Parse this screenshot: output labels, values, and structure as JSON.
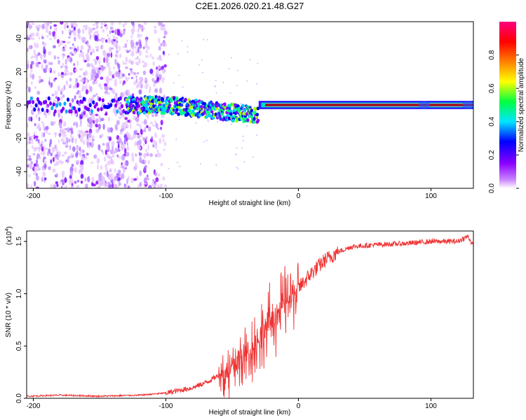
{
  "title": "C2E1.2026.020.21.48.G27",
  "chart_data": [
    {
      "type": "heatmap",
      "xlabel": "Height of straight line (km)",
      "ylabel": "Frequency (Hz)",
      "xlim": [
        -205,
        132
      ],
      "ylim": [
        -50,
        50
      ],
      "xticks": [
        -200,
        -100,
        0,
        100
      ],
      "xtick_labels": [
        "-200",
        "-100",
        "0",
        "100"
      ],
      "yticks": [
        -40,
        -20,
        0,
        20,
        40
      ],
      "ytick_labels": [
        "-40",
        "-20",
        "0",
        "20",
        "40"
      ],
      "colorbar": {
        "label": "Normalized spectral amplitude",
        "range": [
          0.0,
          1.0
        ],
        "ticks": [
          0.0,
          0.2,
          0.4,
          0.6,
          0.8
        ],
        "tick_labels": [
          "0.0",
          "0.2",
          "0.4",
          "0.6",
          "0.8"
        ],
        "colormap": [
          "#ffffff",
          "#a000ff",
          "#0000ff",
          "#00e5ff",
          "#00ff40",
          "#ffff00",
          "#ff8000",
          "#ff0000",
          "#ff0080"
        ]
      },
      "regions": [
        {
          "name": "noise",
          "x_range": [
            -205,
            -100
          ],
          "spread_hz": 50,
          "amplitude": 0.15
        },
        {
          "name": "fading",
          "x_range": [
            -100,
            -30
          ],
          "center_hz": [
            0,
            -6
          ],
          "amplitude": 0.4
        },
        {
          "name": "stable",
          "x_range": [
            -30,
            132
          ],
          "center_hz": [
            0,
            0
          ],
          "amplitude": 1.0
        }
      ]
    },
    {
      "type": "line",
      "xlabel": "Height of straight line (km)",
      "ylabel": "SNR (10 * v/v)",
      "scale_label": "(x10",
      "scale_exp": "4",
      "xlim": [
        -205,
        132
      ],
      "ylim": [
        0,
        1.6
      ],
      "xticks": [
        -200,
        -100,
        0,
        100
      ],
      "xtick_labels": [
        "-200",
        "-100",
        "0",
        "100"
      ],
      "yticks": [
        0.0,
        0.5,
        1.0,
        1.5
      ],
      "ytick_labels": [
        "0.0",
        "0.5",
        "1.0",
        "1.5"
      ],
      "color": "#ee3333",
      "series": [
        {
          "name": "SNR",
          "x": [
            -205,
            -180,
            -150,
            -120,
            -100,
            -80,
            -70,
            -60,
            -50,
            -40,
            -30,
            -20,
            -10,
            0,
            10,
            20,
            30,
            40,
            60,
            80,
            100,
            120,
            128,
            132
          ],
          "y": [
            0.02,
            0.03,
            0.02,
            0.03,
            0.05,
            0.1,
            0.15,
            0.22,
            0.3,
            0.4,
            0.55,
            0.75,
            0.9,
            1.05,
            1.2,
            1.32,
            1.4,
            1.45,
            1.47,
            1.48,
            1.5,
            1.5,
            1.55,
            1.45
          ]
        }
      ]
    }
  ]
}
